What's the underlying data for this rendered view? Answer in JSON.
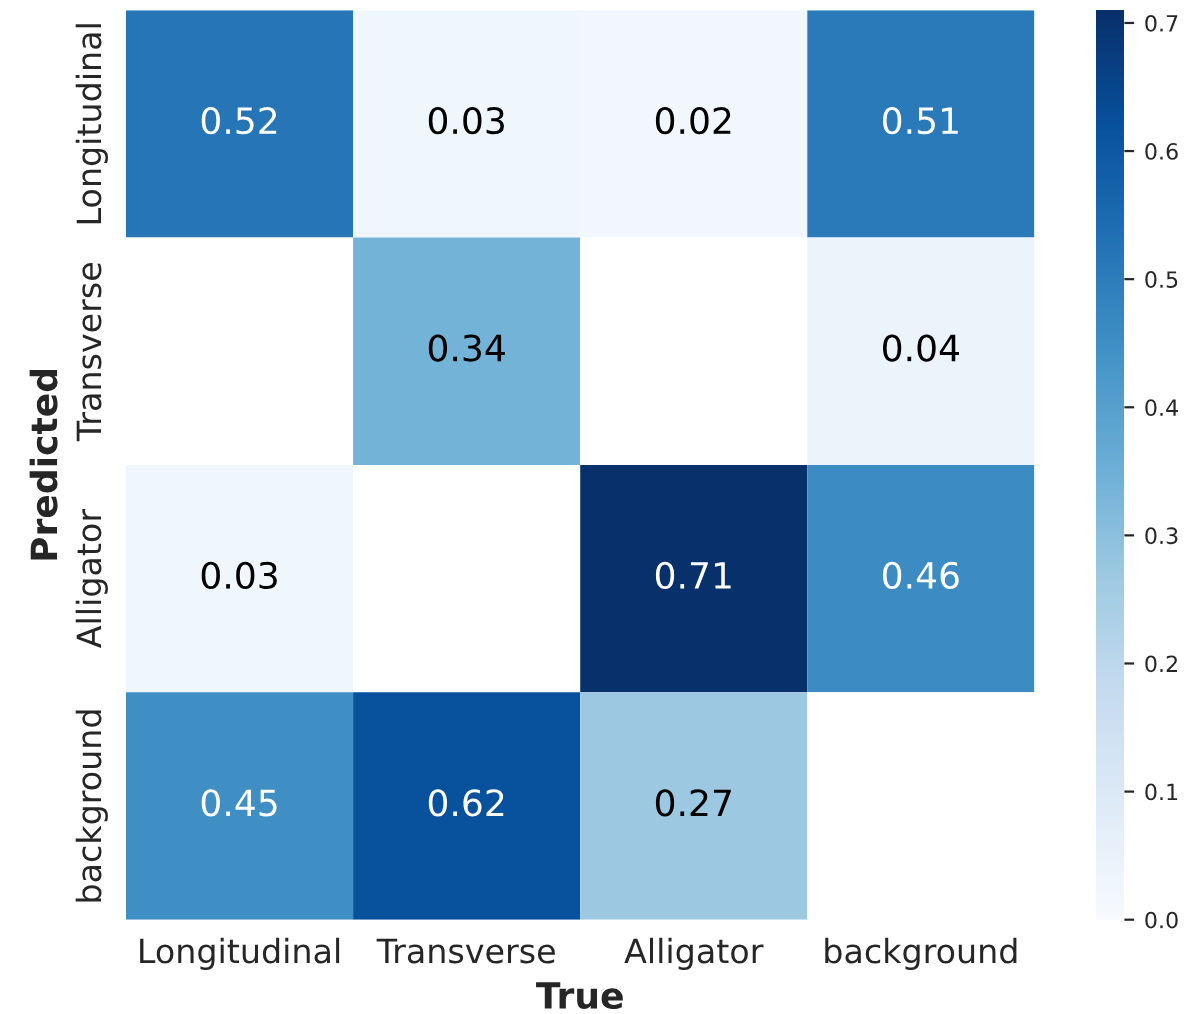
{
  "chart_data": {
    "type": "heatmap",
    "xlabel": "True",
    "ylabel": "Predicted",
    "categories": [
      "Longitudinal",
      "Transverse",
      "Alligator",
      "background"
    ],
    "y_categories": [
      "Longitudinal",
      "Transverse",
      "Alligator",
      "background"
    ],
    "cells": [
      [
        0.52,
        0.03,
        0.02,
        0.51
      ],
      [
        null,
        0.34,
        null,
        0.04
      ],
      [
        0.03,
        null,
        0.71,
        0.46
      ],
      [
        0.45,
        0.62,
        0.27,
        null
      ]
    ],
    "clim": [
      0,
      0.71
    ],
    "data_labels": true,
    "cticks": [
      {
        "value": 0,
        "label": "0.0"
      },
      0.1,
      0.2,
      0.3,
      0.4,
      0.5,
      0.6,
      0.7
    ]
  }
}
